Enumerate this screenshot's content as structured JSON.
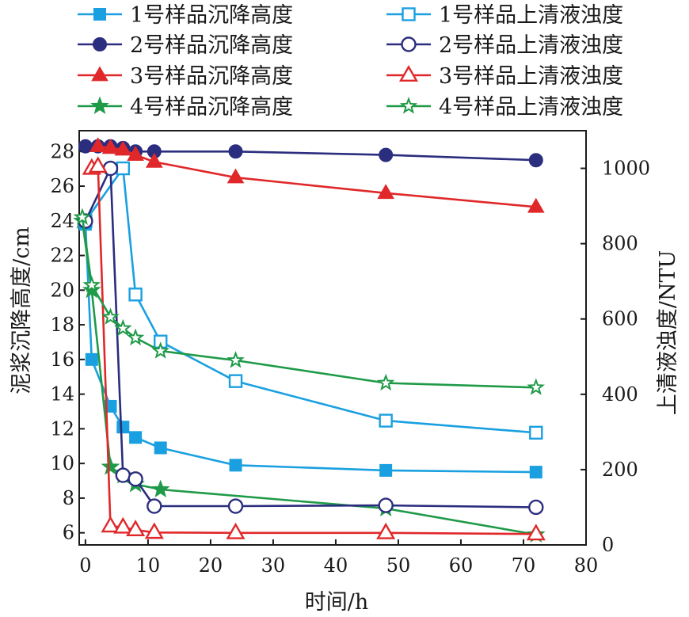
{
  "chart_data": {
    "type": "line",
    "xlabel": "时间/h",
    "ylabel": "泥浆沉降高度/cm",
    "y2label": "上清液浊度/NTU",
    "xlim": [
      -1,
      80
    ],
    "ylim": [
      5.3,
      29.2
    ],
    "y2lim": [
      0,
      1100
    ],
    "x_ticks": [
      0,
      10,
      20,
      30,
      40,
      50,
      60,
      70,
      80
    ],
    "y_ticks": [
      6,
      8,
      10,
      12,
      14,
      16,
      18,
      20,
      22,
      24,
      26,
      28
    ],
    "y2_ticks": [
      0,
      200,
      400,
      600,
      800,
      1000
    ],
    "grid": false,
    "legend_position": "top",
    "series": [
      {
        "name": "1号样品沉降高度",
        "axis": "left",
        "color": "#1aa0e0",
        "marker": "square-filled",
        "x": [
          0,
          1,
          4,
          6,
          8,
          12,
          24,
          48,
          72
        ],
        "y": [
          23.8,
          16.0,
          13.3,
          12.1,
          11.5,
          10.9,
          9.9,
          9.6,
          9.5
        ]
      },
      {
        "name": "2号样品沉降高度",
        "axis": "left",
        "color": "#2b2d7e",
        "marker": "circle-filled",
        "x": [
          0,
          2,
          4,
          6,
          8,
          11,
          24,
          48,
          72
        ],
        "y": [
          28.3,
          28.3,
          28.3,
          28.2,
          28.0,
          28.0,
          28.0,
          27.8,
          27.5
        ]
      },
      {
        "name": "3号样品沉降高度",
        "axis": "left",
        "color": "#e0282a",
        "marker": "triangle-filled",
        "x": [
          2,
          4,
          6,
          8,
          11,
          24,
          48,
          72
        ],
        "y": [
          28.3,
          28.2,
          28.1,
          27.8,
          27.4,
          26.5,
          25.6,
          24.8
        ]
      },
      {
        "name": "4号样品沉降高度",
        "axis": "left",
        "color": "#1f9a48",
        "marker": "star-filled",
        "x": [
          -0.5,
          1,
          4,
          6,
          8,
          12,
          48,
          72
        ],
        "y": [
          24.0,
          20.0,
          9.8,
          9.3,
          8.8,
          8.5,
          7.4,
          5.9
        ]
      },
      {
        "name": "1号样品上清液浊度",
        "axis": "right",
        "color": "#1aa0e0",
        "marker": "square-open",
        "x": [
          0,
          6,
          8,
          12,
          24,
          48,
          72
        ],
        "y": [
          860,
          1000,
          665,
          540,
          435,
          330,
          298
        ]
      },
      {
        "name": "2号样品上清液浊度",
        "axis": "right",
        "color": "#2b2d7e",
        "marker": "circle-open",
        "x": [
          0,
          4,
          6,
          8,
          11,
          24,
          48,
          72
        ],
        "y": [
          860,
          1000,
          185,
          175,
          103,
          103,
          105,
          100
        ]
      },
      {
        "name": "3号样品上清液浊度",
        "axis": "right",
        "color": "#e0282a",
        "marker": "triangle-open",
        "x": [
          1,
          2,
          4,
          6,
          8,
          11,
          24,
          48,
          72
        ],
        "y": [
          1000,
          1005,
          50,
          47,
          40,
          33,
          32,
          32,
          29
        ]
      },
      {
        "name": "4号样品上清液浊度",
        "axis": "right",
        "color": "#1f9a48",
        "marker": "star-open",
        "x": [
          -0.5,
          1,
          4,
          6,
          8,
          12,
          24,
          48,
          72
        ],
        "y": [
          870,
          690,
          605,
          575,
          550,
          515,
          490,
          430,
          418
        ]
      }
    ]
  }
}
